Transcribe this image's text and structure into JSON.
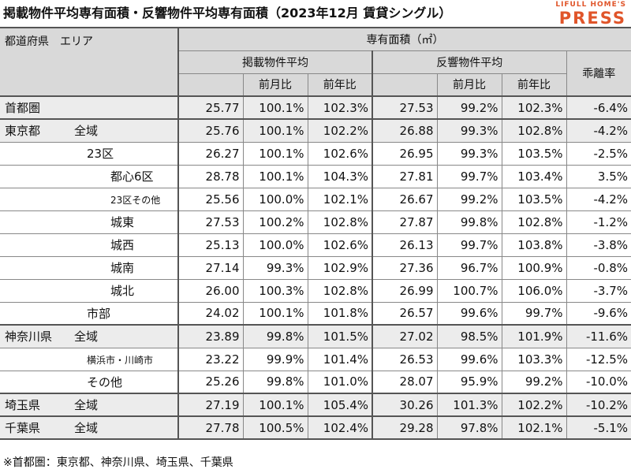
{
  "title": "掲載物件平均専有面積・反響物件平均専有面積（2023年12月 賃貸シングル）",
  "logo": {
    "top": "LIFULL HOME'S",
    "main": "PRESS"
  },
  "header": {
    "region": "都道府県　エリア",
    "area_unit": "専有面積（㎡）",
    "listed": "掲載物件平均",
    "inquiry": "反響物件平均",
    "divergence": "乖離率",
    "mom": "前月比",
    "yoy": "前年比"
  },
  "rows": [
    {
      "pref": "首都圏",
      "area": "",
      "v": [
        "25.77",
        "100.1%",
        "102.3%",
        "27.53",
        "99.2%",
        "102.3%",
        "-6.4%"
      ]
    },
    {
      "pref": "東京都",
      "area": "全域",
      "v": [
        "25.76",
        "100.1%",
        "102.2%",
        "26.88",
        "99.3%",
        "102.8%",
        "-4.2%"
      ]
    },
    {
      "pref": "",
      "area": "23区",
      "v": [
        "26.27",
        "100.1%",
        "102.6%",
        "26.95",
        "99.3%",
        "103.5%",
        "-2.5%"
      ]
    },
    {
      "pref": "",
      "area": "都心6区",
      "v": [
        "28.78",
        "100.1%",
        "104.3%",
        "27.81",
        "99.7%",
        "103.4%",
        "3.5%"
      ]
    },
    {
      "pref": "",
      "area": "23区その他",
      "v": [
        "25.56",
        "100.0%",
        "102.1%",
        "26.67",
        "99.2%",
        "103.5%",
        "-4.2%"
      ]
    },
    {
      "pref": "",
      "area": "城東",
      "v": [
        "27.53",
        "100.2%",
        "102.8%",
        "27.87",
        "99.8%",
        "102.8%",
        "-1.2%"
      ]
    },
    {
      "pref": "",
      "area": "城西",
      "v": [
        "25.13",
        "100.0%",
        "102.6%",
        "26.13",
        "99.7%",
        "103.8%",
        "-3.8%"
      ]
    },
    {
      "pref": "",
      "area": "城南",
      "v": [
        "27.14",
        "99.3%",
        "102.9%",
        "27.36",
        "96.7%",
        "100.9%",
        "-0.8%"
      ]
    },
    {
      "pref": "",
      "area": "城北",
      "v": [
        "26.00",
        "100.3%",
        "102.8%",
        "26.99",
        "100.7%",
        "106.0%",
        "-3.7%"
      ]
    },
    {
      "pref": "",
      "area": "市部",
      "v": [
        "24.02",
        "100.1%",
        "101.8%",
        "26.57",
        "99.6%",
        "99.7%",
        "-9.6%"
      ]
    },
    {
      "pref": "神奈川県",
      "area": "全域",
      "v": [
        "23.89",
        "99.8%",
        "101.5%",
        "27.02",
        "98.5%",
        "101.9%",
        "-11.6%"
      ]
    },
    {
      "pref": "",
      "area": "横浜市・川崎市",
      "v": [
        "23.22",
        "99.9%",
        "101.4%",
        "26.53",
        "99.6%",
        "103.3%",
        "-12.5%"
      ]
    },
    {
      "pref": "",
      "area": "その他",
      "v": [
        "25.26",
        "99.8%",
        "101.0%",
        "28.07",
        "95.9%",
        "99.2%",
        "-10.0%"
      ]
    },
    {
      "pref": "埼玉県",
      "area": "全域",
      "v": [
        "27.19",
        "100.1%",
        "105.4%",
        "30.26",
        "101.3%",
        "102.2%",
        "-10.2%"
      ]
    },
    {
      "pref": "千葉県",
      "area": "全域",
      "v": [
        "27.78",
        "100.5%",
        "102.4%",
        "29.28",
        "97.8%",
        "102.1%",
        "-5.1%"
      ]
    }
  ],
  "footnote": "※首都圏：東京都、神奈川県、埼玉県、千葉県"
}
